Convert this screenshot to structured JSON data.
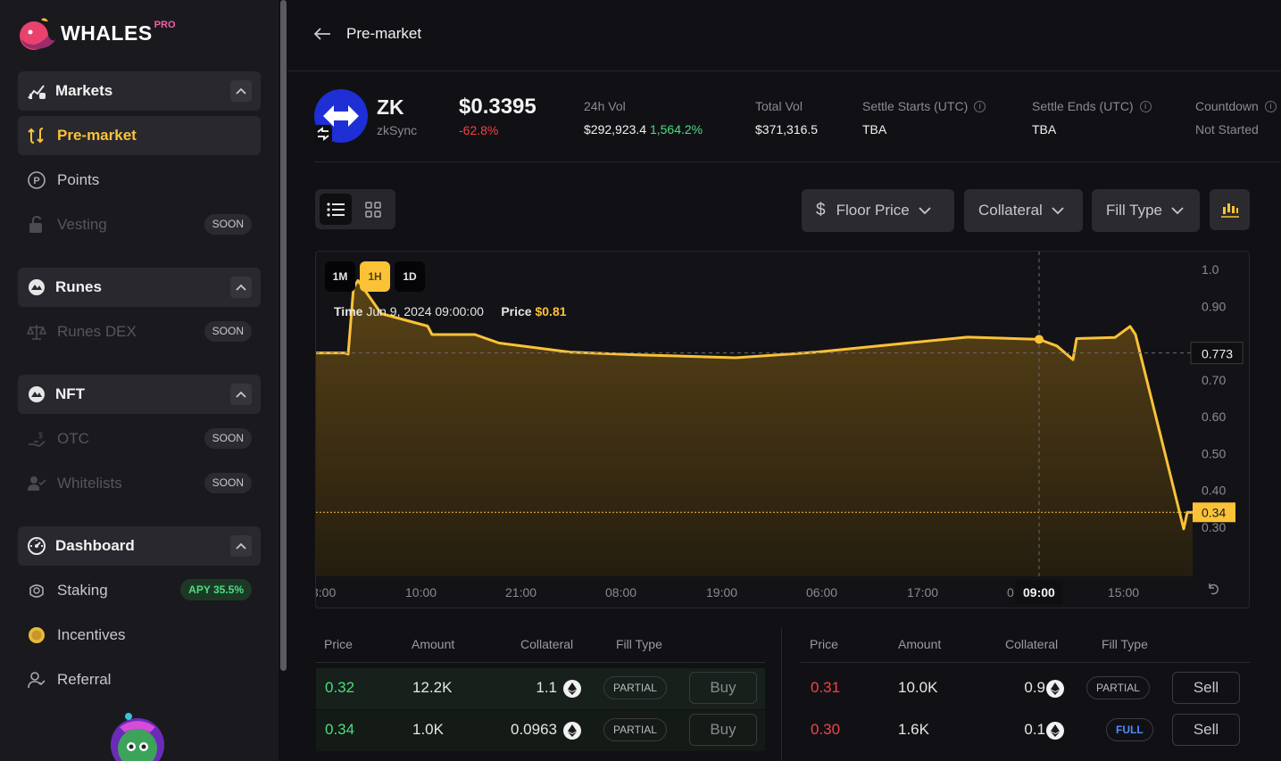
{
  "brand": {
    "name": "WHALES",
    "badge": "PRO"
  },
  "sidebar": {
    "groups": [
      {
        "label": "Markets"
      },
      {
        "label": "Runes"
      },
      {
        "label": "NFT"
      },
      {
        "label": "Dashboard"
      }
    ],
    "items": {
      "premarket": "Pre-market",
      "points": "Points",
      "vesting": "Vesting",
      "runes_dex": "Runes DEX",
      "otc": "OTC",
      "whitelists": "Whitelists",
      "staking": "Staking",
      "incentives": "Incentives",
      "referral": "Referral"
    },
    "soon_label": "SOON",
    "staking_badge": "APY 35.5%"
  },
  "header": {
    "title": "Pre-market"
  },
  "token": {
    "symbol": "ZK",
    "name": "zkSync",
    "price": "$0.3395",
    "change": "-62.8%"
  },
  "stats": {
    "vol24_label": "24h Vol",
    "vol24_value": "$292,923.4",
    "vol24_change": "1,564.2%",
    "total_vol_label": "Total Vol",
    "total_vol_value": "$371,316.5",
    "settle_start_label": "Settle Starts (UTC)",
    "settle_start_value": "TBA",
    "settle_end_label": "Settle Ends (UTC)",
    "settle_end_value": "TBA",
    "countdown_label": "Countdown",
    "countdown_value": "Not Started"
  },
  "filters": {
    "floor_price": "Floor Price",
    "collateral": "Collateral",
    "fill_type": "Fill Type"
  },
  "chart": {
    "timeframes": [
      "1M",
      "1H",
      "1D"
    ],
    "active_timeframe": "1H",
    "tooltip_time_label": "Time",
    "tooltip_time_value": "Jun 9, 2024 09:00:00",
    "tooltip_price_label": "Price",
    "tooltip_price_value": "$0.81",
    "crosshair_y_label": "0.773",
    "crosshair_x_label": "09:00",
    "last_price_label": "0.34"
  },
  "chart_data": {
    "type": "area",
    "x_ticks": [
      "3:00",
      "10:00",
      "21:00",
      "08:00",
      "19:00",
      "06:00",
      "17:00",
      "0",
      "15:00"
    ],
    "y_ticks": [
      "1.0",
      "0.90",
      "0.70",
      "0.60",
      "0.50",
      "0.40",
      "0.30"
    ],
    "ylim": [
      0.22,
      1.05
    ],
    "line_color": "#fbc237",
    "points": [
      [
        0,
        0.773
      ],
      [
        32,
        0.773
      ],
      [
        36,
        0.77
      ],
      [
        42,
        0.95
      ],
      [
        47,
        0.97
      ],
      [
        73,
        0.88
      ],
      [
        125,
        0.846
      ],
      [
        130,
        0.823
      ],
      [
        178,
        0.823
      ],
      [
        205,
        0.8
      ],
      [
        285,
        0.775
      ],
      [
        360,
        0.768
      ],
      [
        470,
        0.76
      ],
      [
        560,
        0.775
      ],
      [
        650,
        0.797
      ],
      [
        730,
        0.816
      ],
      [
        810,
        0.81
      ],
      [
        830,
        0.792
      ],
      [
        848,
        0.755
      ],
      [
        852,
        0.812
      ],
      [
        895,
        0.815
      ],
      [
        905,
        0.833
      ],
      [
        912,
        0.845
      ],
      [
        918,
        0.823
      ],
      [
        972,
        0.295
      ],
      [
        976,
        0.34
      ],
      [
        982,
        0.34
      ]
    ]
  },
  "orderbook": {
    "headers": {
      "price": "Price",
      "amount": "Amount",
      "collateral": "Collateral",
      "fill_type": "Fill Type"
    },
    "buy": [
      {
        "price": "0.32",
        "amount": "12.2K",
        "collateral": "1.1",
        "fill": "PARTIAL",
        "action": "Buy"
      },
      {
        "price": "0.34",
        "amount": "1.0K",
        "collateral": "0.0963",
        "fill": "PARTIAL",
        "action": "Buy"
      }
    ],
    "sell": [
      {
        "price": "0.31",
        "amount": "10.0K",
        "collateral": "0.9",
        "fill": "PARTIAL",
        "action": "Sell"
      },
      {
        "price": "0.30",
        "amount": "1.6K",
        "collateral": "0.1",
        "fill": "FULL",
        "action": "Sell"
      }
    ]
  }
}
